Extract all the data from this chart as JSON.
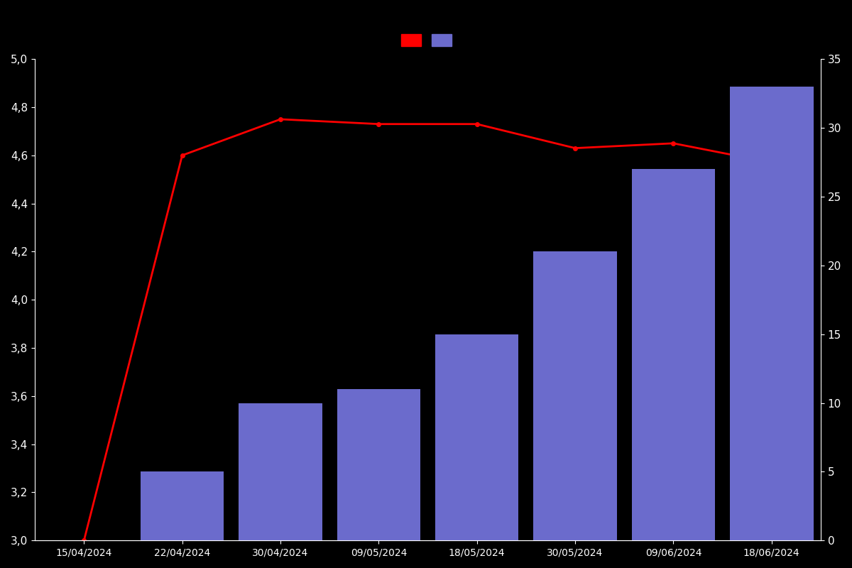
{
  "dates": [
    "15/04/2024",
    "22/04/2024",
    "30/04/2024",
    "09/05/2024",
    "18/05/2024",
    "30/05/2024",
    "09/06/2024",
    "18/06/2024"
  ],
  "bar_values": [
    0,
    5,
    10,
    11,
    15,
    21,
    27,
    33
  ],
  "line_values": [
    3.0,
    4.6,
    4.75,
    4.73,
    4.73,
    4.63,
    4.65,
    4.57
  ],
  "bar_color": "#6B6BCC",
  "line_color": "#ff0000",
  "background_color": "#000000",
  "text_color": "#ffffff",
  "ylim_left": [
    3.0,
    5.0
  ],
  "ylim_right": [
    0,
    35
  ],
  "yticks_left": [
    3.0,
    3.2,
    3.4,
    3.6,
    3.8,
    4.0,
    4.2,
    4.4,
    4.6,
    4.8,
    5.0
  ],
  "yticks_right": [
    0,
    5,
    10,
    15,
    20,
    25,
    30,
    35
  ],
  "bar_width": 0.85,
  "marker_size": 4,
  "line_width": 2.0
}
